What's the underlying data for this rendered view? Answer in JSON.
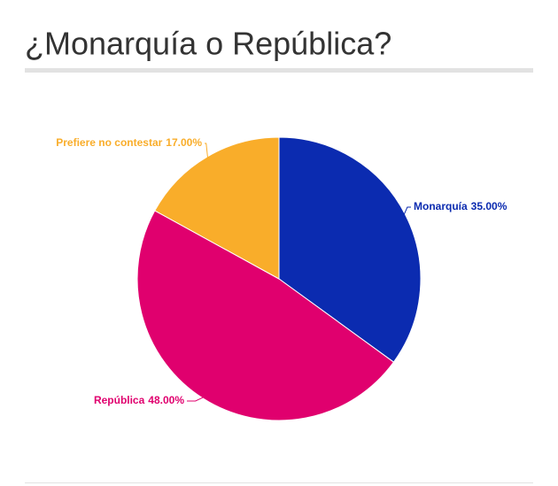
{
  "chart_data": {
    "type": "pie",
    "title": "¿Monarquía o República?",
    "categories": [
      "Monarquía",
      "República",
      "Prefiere no contestar"
    ],
    "values": [
      35,
      48,
      17
    ],
    "value_labels": [
      "35.00%",
      "48.00%",
      "17.00%"
    ],
    "colors": [
      "#0b2bb0",
      "#e0006e",
      "#f9ad2a"
    ]
  }
}
